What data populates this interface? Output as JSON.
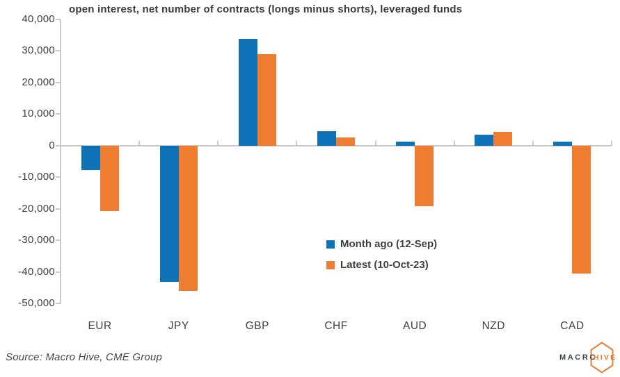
{
  "title": "open interest, net number of contracts (longs minus shorts), leveraged funds",
  "source": "Source: Macro Hive, CME Group",
  "logo": {
    "macro": "MACRO",
    "hive": "HIVE"
  },
  "legend": [
    {
      "label": "Month ago (12-Sep)",
      "color": "#0f72b6"
    },
    {
      "label": "Latest (10-Oct-23)",
      "color": "#ee7d31"
    }
  ],
  "colors": {
    "blue": "#0f72b6",
    "orange": "#ee7d31",
    "axis": "#c9c9c9"
  },
  "chart_data": {
    "type": "bar",
    "title": "open interest, net number of contracts (longs minus shorts), leveraged funds",
    "categories": [
      "EUR",
      "JPY",
      "GBP",
      "CHF",
      "AUD",
      "NZD",
      "CAD"
    ],
    "series": [
      {
        "name": "Month ago (12-Sep)",
        "color": "#0f72b6",
        "values": [
          -7700,
          -43200,
          33900,
          4600,
          1200,
          3500,
          1200
        ]
      },
      {
        "name": "Latest (10-Oct-23)",
        "color": "#ee7d31",
        "values": [
          -20700,
          -46000,
          29000,
          2600,
          -19200,
          4400,
          -40500
        ]
      }
    ],
    "xlabel": "",
    "ylabel": "",
    "ylim": [
      -50000,
      40000
    ],
    "y_ticks": [
      {
        "label": "40,000",
        "value": 40000
      },
      {
        "label": "30,000",
        "value": 30000
      },
      {
        "label": "20,000",
        "value": 20000
      },
      {
        "label": "10,000",
        "value": 10000
      },
      {
        "label": "0",
        "value": 0
      },
      {
        "label": "-10,000",
        "value": -10000
      },
      {
        "label": "-20,000",
        "value": -20000
      },
      {
        "label": "-30,000",
        "value": -30000
      },
      {
        "label": "-40,000",
        "value": -40000
      },
      {
        "label": "-50,000",
        "value": -50000
      }
    ],
    "grid": false,
    "legend_position": "inside-right"
  }
}
